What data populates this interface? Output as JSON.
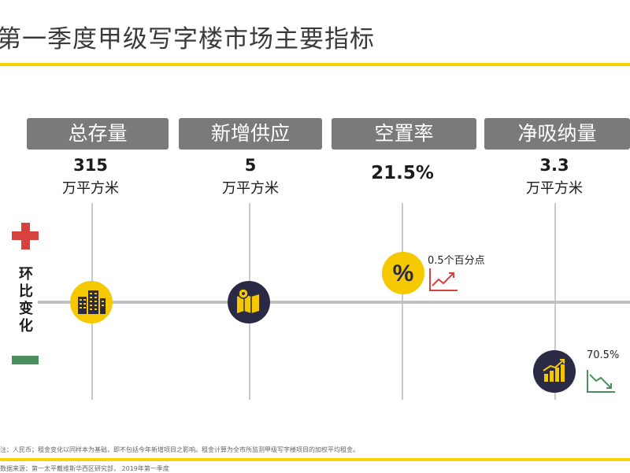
{
  "title": "第一季度甲级写字楼市场主要指标",
  "vertical_label": "环比变化",
  "columns": [
    {
      "header": "总存量",
      "value": "315",
      "unit": "万平方米",
      "icon": "building-icon"
    },
    {
      "header": "新增供应",
      "value": "5",
      "unit": "万平方米",
      "icon": "map-pin-icon"
    },
    {
      "header": "空置率",
      "value": "21.5%",
      "unit": "",
      "icon": "percent-icon",
      "change": "0.5个百分点",
      "trend": "up"
    },
    {
      "header": "净吸纳量",
      "value": "3.3",
      "unit": "万平方米",
      "icon": "bar-growth-icon",
      "change": "70.5%",
      "trend": "down"
    }
  ],
  "footnotes": {
    "note": "注：人民币；租金变化以同样本为基础，即不包括今年新增项目之影响。租金计算为全市所监测甲级写字楼项目的加权平均租金。",
    "source": "数据来源：第一太平戴维斯华西区研究部， 2019年第一季度"
  },
  "colors": {
    "accent_yellow": "#f5d200",
    "pill_gray": "#7a7a7a",
    "navy": "#2b2a44",
    "plus_red": "#d6423e",
    "minus_green": "#4e8d5e"
  }
}
